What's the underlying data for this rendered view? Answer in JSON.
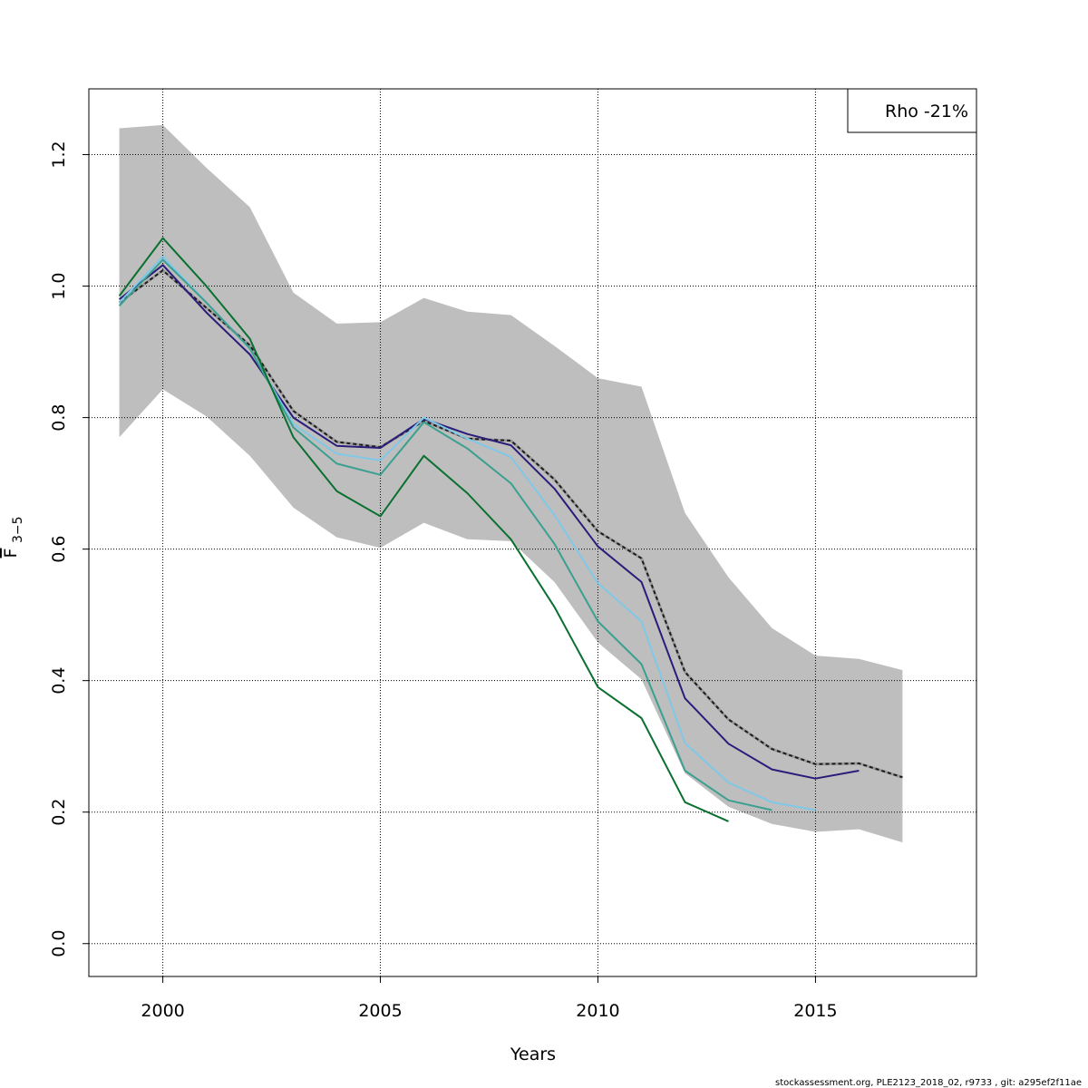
{
  "chart_data": {
    "type": "line",
    "xlabel": "Years",
    "ylabel": {
      "main": "F",
      "sub": "3−5"
    },
    "xlim": [
      1998.3,
      2018.7
    ],
    "ylim": [
      -0.05,
      1.3
    ],
    "x_ticks": [
      2000,
      2005,
      2010,
      2015
    ],
    "x_tick_labels": [
      "2000",
      "2005",
      "2010",
      "2015"
    ],
    "y_ticks": [
      0.0,
      0.2,
      0.4,
      0.6,
      0.8,
      1.0,
      1.2
    ],
    "y_tick_labels": [
      "0.0",
      "0.2",
      "0.4",
      "0.6",
      "0.8",
      "1.0",
      "1.2"
    ],
    "grid": true,
    "legend": {
      "position": "top-right",
      "text": "Rho -21%"
    },
    "confidence_band": {
      "color": "#bebebe",
      "x": [
        1999,
        2000,
        2001,
        2002,
        2003,
        2004,
        2005,
        2006,
        2007,
        2008,
        2009,
        2010,
        2011,
        2012,
        2013,
        2014,
        2015,
        2016,
        2017
      ],
      "upper": [
        1.24,
        1.245,
        1.18,
        1.12,
        0.99,
        0.943,
        0.945,
        0.982,
        0.961,
        0.956,
        0.909,
        0.86,
        0.847,
        0.655,
        0.557,
        0.48,
        0.438,
        0.433,
        0.416
      ],
      "lower": [
        0.77,
        0.843,
        0.802,
        0.742,
        0.663,
        0.618,
        0.602,
        0.64,
        0.615,
        0.612,
        0.55,
        0.458,
        0.402,
        0.259,
        0.208,
        0.182,
        0.17,
        0.174,
        0.154
      ]
    },
    "series": [
      {
        "color": "#1c1c1c",
        "dashed": true,
        "x": [
          1999,
          2000,
          2001,
          2002,
          2003,
          2004,
          2005,
          2006,
          2007,
          2008,
          2009,
          2010,
          2011,
          2012,
          2013,
          2014,
          2015,
          2016,
          2017
        ],
        "values": [
          0.975,
          1.024,
          0.967,
          0.91,
          0.81,
          0.763,
          0.755,
          0.795,
          0.768,
          0.765,
          0.706,
          0.627,
          0.586,
          0.413,
          0.341,
          0.296,
          0.273,
          0.274,
          0.253
        ]
      },
      {
        "color": "#2a1c7a",
        "dashed": false,
        "x": [
          1999,
          2000,
          2001,
          2002,
          2003,
          2004,
          2005,
          2006,
          2007,
          2008,
          2009,
          2010,
          2011,
          2012,
          2013,
          2014,
          2015,
          2016
        ],
        "values": [
          0.98,
          1.032,
          0.96,
          0.896,
          0.8,
          0.757,
          0.754,
          0.798,
          0.775,
          0.758,
          0.692,
          0.604,
          0.55,
          0.373,
          0.304,
          0.265,
          0.251,
          0.263
        ]
      },
      {
        "color": "#7fc8e8",
        "dashed": false,
        "x": [
          1999,
          2000,
          2001,
          2002,
          2003,
          2004,
          2005,
          2006,
          2007,
          2008,
          2009,
          2010,
          2011,
          2012,
          2013,
          2014,
          2015
        ],
        "values": [
          0.975,
          1.045,
          0.975,
          0.905,
          0.79,
          0.745,
          0.735,
          0.8,
          0.768,
          0.74,
          0.652,
          0.548,
          0.49,
          0.305,
          0.245,
          0.215,
          0.203
        ]
      },
      {
        "color": "#3aa090",
        "dashed": false,
        "x": [
          1999,
          2000,
          2001,
          2002,
          2003,
          2004,
          2005,
          2006,
          2007,
          2008,
          2009,
          2010,
          2011,
          2012,
          2013,
          2014
        ],
        "values": [
          0.97,
          1.04,
          0.975,
          0.905,
          0.785,
          0.73,
          0.713,
          0.793,
          0.753,
          0.7,
          0.608,
          0.49,
          0.425,
          0.263,
          0.218,
          0.203
        ]
      },
      {
        "color": "#0a7030",
        "dashed": false,
        "x": [
          1999,
          2000,
          2001,
          2002,
          2003,
          2004,
          2005,
          2006,
          2007,
          2008,
          2009,
          2010,
          2011,
          2012,
          2013
        ],
        "values": [
          0.985,
          1.073,
          1.0,
          0.92,
          0.77,
          0.688,
          0.65,
          0.742,
          0.685,
          0.615,
          0.512,
          0.39,
          0.343,
          0.215,
          0.186
        ]
      }
    ]
  },
  "footer": "stockassessment.org, PLE2123_2018_02, r9733 , git: a295ef2f11ae"
}
